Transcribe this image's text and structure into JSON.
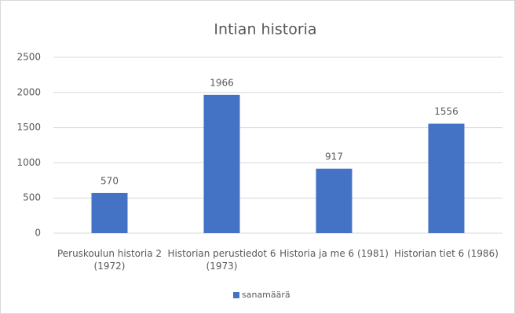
{
  "chart_data": {
    "type": "bar",
    "title": "Intian historia",
    "categories": [
      "Peruskoulun historia 2 (1972)",
      "Historian perustiedot 6 (1973)",
      "Historia ja me 6 (1981)",
      "Historian tiet 6 (1986)"
    ],
    "series": [
      {
        "name": "sanamäärä",
        "color": "#4472c4",
        "values": [
          570,
          1966,
          917,
          1556
        ]
      }
    ],
    "ylim": [
      0,
      2500
    ],
    "yticks": [
      0,
      500,
      1000,
      1500,
      2000,
      2500
    ],
    "grid": true,
    "legend": "bottom"
  }
}
